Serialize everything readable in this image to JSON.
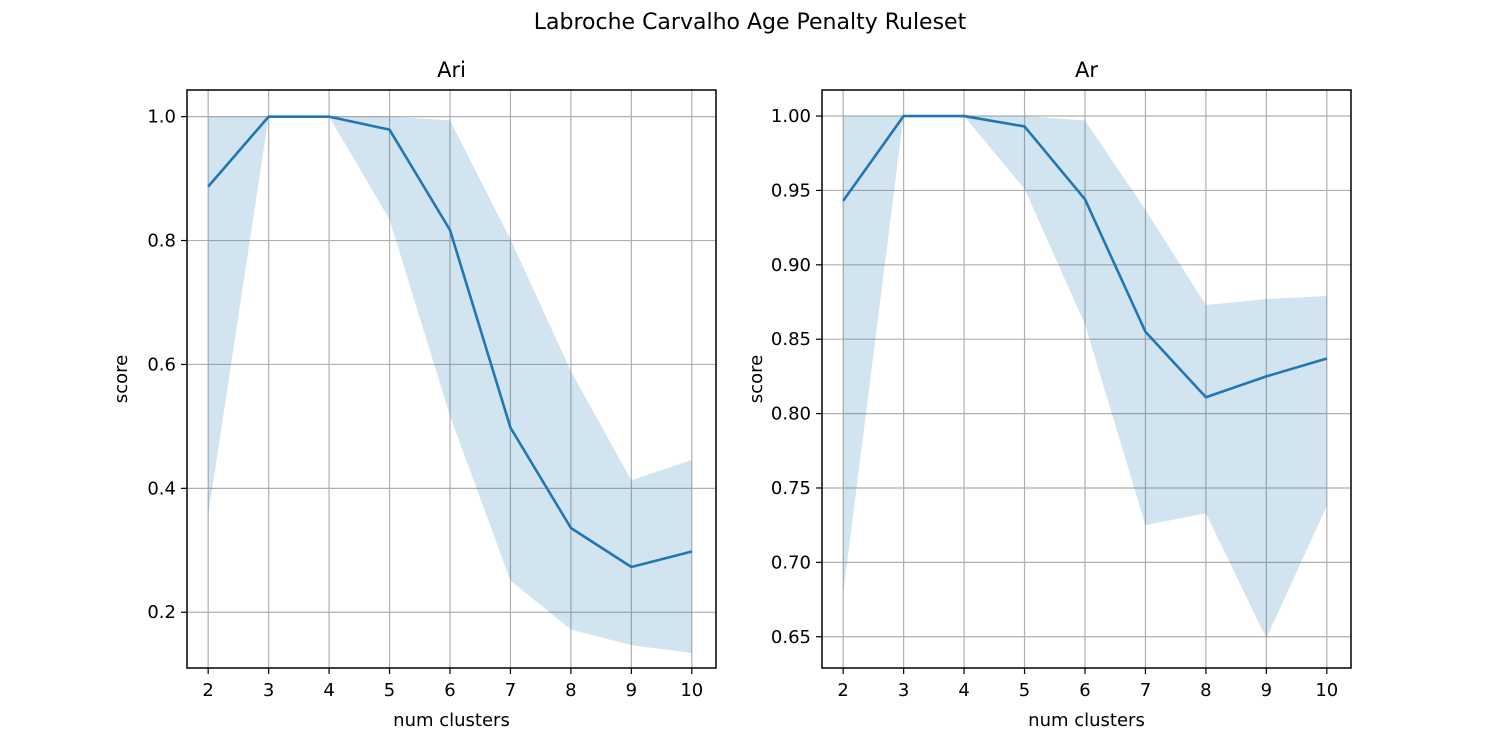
{
  "figure": {
    "title": "Labroche Carvalho Age Penalty Ruleset"
  },
  "chart_data": [
    {
      "type": "line",
      "title": "Ari",
      "xlabel": "num clusters",
      "ylabel": "score",
      "x": [
        2,
        3,
        4,
        5,
        6,
        7,
        8,
        9,
        10
      ],
      "xlim": [
        1.65,
        10.4
      ],
      "ylim": [
        0.11,
        1.043
      ],
      "xticks": [
        2,
        3,
        4,
        5,
        6,
        7,
        8,
        9,
        10
      ],
      "yticks": [
        0.2,
        0.4,
        0.6,
        0.8,
        1.0
      ],
      "ytick_labels": [
        "0.2",
        "0.4",
        "0.6",
        "0.8",
        "1.0"
      ],
      "grid": true,
      "series": [
        {
          "values": [
            0.887,
            1.0,
            1.0,
            0.979,
            0.817,
            0.498,
            0.336,
            0.273,
            0.298
          ],
          "band_lower": [
            0.356,
            1.0,
            1.0,
            0.834,
            0.517,
            0.251,
            0.172,
            0.147,
            0.134
          ],
          "band_upper": [
            1.0,
            1.0,
            1.0,
            1.0,
            0.994,
            0.802,
            0.589,
            0.413,
            0.446
          ],
          "color": "#1f77b4"
        }
      ]
    },
    {
      "type": "line",
      "title": "Ar",
      "xlabel": "num clusters",
      "ylabel": "score",
      "x": [
        2,
        3,
        4,
        5,
        6,
        7,
        8,
        9,
        10
      ],
      "xlim": [
        1.65,
        10.4
      ],
      "ylim": [
        0.629,
        1.0175
      ],
      "xticks": [
        2,
        3,
        4,
        5,
        6,
        7,
        8,
        9,
        10
      ],
      "yticks": [
        0.65,
        0.7,
        0.75,
        0.8,
        0.85,
        0.9,
        0.95,
        1.0
      ],
      "ytick_labels": [
        "0.65",
        "0.70",
        "0.75",
        "0.80",
        "0.85",
        "0.90",
        "0.95",
        "1.00"
      ],
      "grid": true,
      "series": [
        {
          "values": [
            0.943,
            1.0,
            1.0,
            0.993,
            0.944,
            0.855,
            0.811,
            0.825,
            0.837
          ],
          "band_lower": [
            0.679,
            1.0,
            1.0,
            0.951,
            0.86,
            0.725,
            0.733,
            0.649,
            0.738
          ],
          "band_upper": [
            1.0,
            1.0,
            1.0,
            1.0,
            0.997,
            0.937,
            0.873,
            0.877,
            0.879
          ],
          "color": "#1f77b4"
        }
      ]
    }
  ]
}
